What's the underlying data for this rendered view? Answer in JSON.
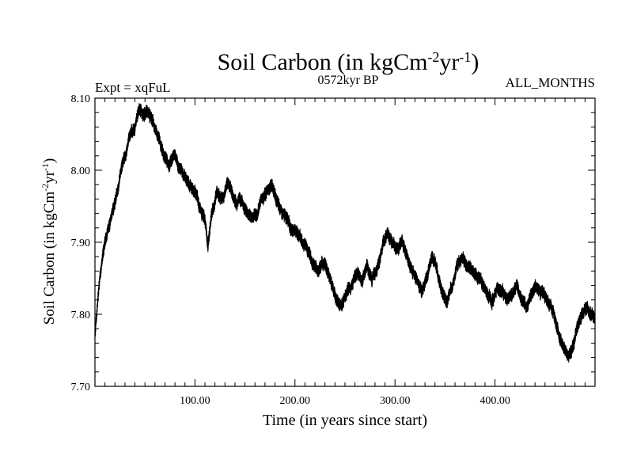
{
  "chart_data": {
    "type": "line",
    "title": {
      "main": "Soil Carbon (in kgCm",
      "sup1": "-2",
      "mid": "yr",
      "sup2": "-1",
      "end": ")"
    },
    "subtitle_left": "Expt = xqFuL",
    "subtitle_center": "0572kyr BP",
    "subtitle_right": "ALL_MONTHS",
    "xlabel": "Time (in years since start)",
    "ylabel": {
      "main": "Soil Carbon (in kgCm",
      "sup1": "-2",
      "mid": "yr",
      "sup2": "-1",
      "end": ")"
    },
    "xlim": [
      0,
      500
    ],
    "ylim": [
      7.7,
      8.1
    ],
    "x_ticks": [
      100,
      200,
      300,
      400
    ],
    "x_tick_labels": [
      "100.00",
      "200.00",
      "300.00",
      "400.00"
    ],
    "y_ticks": [
      7.7,
      7.8,
      7.9,
      8.0,
      8.1
    ],
    "y_tick_labels": [
      "7.70",
      "7.80",
      "7.90",
      "8.00",
      "8.10"
    ],
    "grid": false,
    "series": [
      {
        "name": "Soil Carbon",
        "color": "#000000",
        "band_halfwidth": 0.006,
        "x": [
          0,
          5,
          10,
          15,
          20,
          25,
          30,
          35,
          40,
          44,
          48,
          52,
          56,
          60,
          65,
          70,
          75,
          80,
          85,
          90,
          95,
          100,
          105,
          110,
          113,
          117,
          122,
          127,
          132,
          137,
          142,
          147,
          152,
          157,
          162,
          167,
          172,
          177,
          182,
          187,
          192,
          197,
          202,
          207,
          212,
          217,
          222,
          227,
          232,
          237,
          242,
          247,
          252,
          257,
          262,
          267,
          272,
          277,
          282,
          287,
          292,
          297,
          302,
          307,
          312,
          317,
          322,
          327,
          332,
          337,
          342,
          347,
          352,
          357,
          362,
          367,
          372,
          377,
          382,
          387,
          392,
          397,
          402,
          407,
          412,
          417,
          422,
          427,
          432,
          437,
          442,
          447,
          452,
          457,
          462,
          467,
          472,
          477,
          482,
          487,
          492,
          497
        ],
        "values": [
          7.77,
          7.85,
          7.9,
          7.93,
          7.95,
          7.99,
          8.02,
          8.05,
          8.06,
          8.085,
          8.075,
          8.08,
          8.07,
          8.06,
          8.04,
          8.02,
          8.01,
          8.02,
          8.0,
          7.99,
          7.98,
          7.97,
          7.95,
          7.93,
          7.9,
          7.94,
          7.97,
          7.96,
          7.98,
          7.97,
          7.95,
          7.96,
          7.94,
          7.93,
          7.94,
          7.96,
          7.97,
          7.98,
          7.96,
          7.94,
          7.93,
          7.92,
          7.91,
          7.9,
          7.89,
          7.87,
          7.86,
          7.87,
          7.86,
          7.84,
          7.82,
          7.81,
          7.83,
          7.84,
          7.86,
          7.85,
          7.87,
          7.85,
          7.86,
          7.89,
          7.91,
          7.9,
          7.89,
          7.9,
          7.88,
          7.86,
          7.85,
          7.83,
          7.85,
          7.88,
          7.86,
          7.83,
          7.82,
          7.84,
          7.87,
          7.88,
          7.87,
          7.86,
          7.85,
          7.84,
          7.83,
          7.82,
          7.84,
          7.83,
          7.82,
          7.83,
          7.84,
          7.82,
          7.81,
          7.83,
          7.84,
          7.83,
          7.82,
          7.81,
          7.79,
          7.76,
          7.74,
          7.75,
          7.78,
          7.8,
          7.81,
          7.8
        ]
      }
    ]
  }
}
